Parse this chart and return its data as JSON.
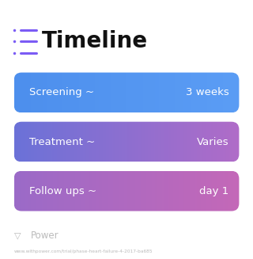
{
  "title": "Timeline",
  "title_fontsize": 20,
  "title_fontweight": "bold",
  "title_color": "#111111",
  "icon_color": "#7B5CF5",
  "background_color": "#ffffff",
  "rows": [
    {
      "label": "Screening ~",
      "value": "3 weeks",
      "color_left": "#4D8FED",
      "color_right": "#5B9DF5"
    },
    {
      "label": "Treatment ~",
      "value": "Varies",
      "color_left": "#6B72D8",
      "color_right": "#B06CC8"
    },
    {
      "label": "Follow ups ~",
      "value": "day 1",
      "color_left": "#9B6BC8",
      "color_right": "#C468B8"
    }
  ],
  "footer_text": "Power",
  "footer_url": "www.withpower.com/trial/phase-heart-failure-4-2017-ba685",
  "footer_color": "#bbbbbb",
  "label_fontsize": 9.5,
  "value_fontsize": 9.5
}
